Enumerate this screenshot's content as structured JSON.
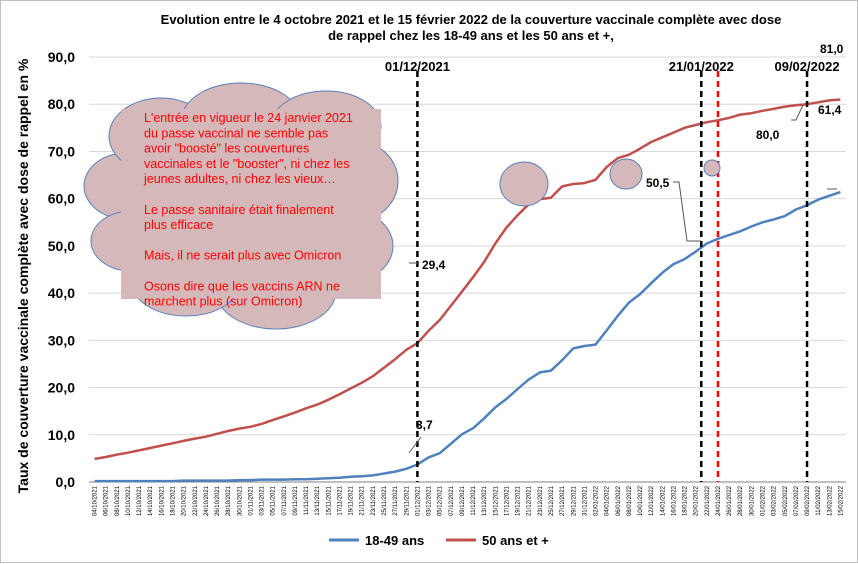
{
  "chart_data": {
    "type": "line",
    "title": [
      "Evolution entre le 4 octobre 2021 et le 15 février 2022 de la couverture vaccinale complète avec dose",
      "de rappel chez les 18-49 ans et les 50 ans et +,"
    ],
    "ylabel": "Taux de couverture vaccinale complète avec dose de rappel en %",
    "xlabel": "",
    "ylim": [
      0,
      90
    ],
    "yticks": [
      "0,0",
      "10,0",
      "20,0",
      "30,0",
      "40,0",
      "50,0",
      "60,0",
      "70,0",
      "80,0",
      "90,0"
    ],
    "grid": true,
    "legend_position": "bottom",
    "colors": {
      "s1": "#4f81bd",
      "s2": "#c0504d",
      "cloud": "#d5b8ba",
      "cloud_edge": "#5b7fb8",
      "red_marker": "#ff0000"
    },
    "x": [
      "04/10/2021",
      "06/10/2021",
      "08/10/2021",
      "10/10/2021",
      "12/10/2021",
      "14/10/2021",
      "16/10/2021",
      "18/10/2021",
      "20/10/2021",
      "22/10/2021",
      "24/10/2021",
      "26/10/2021",
      "28/10/2021",
      "30/10/2021",
      "01/11/2021",
      "03/11/2021",
      "05/11/2021",
      "07/11/2021",
      "09/11/2021",
      "11/11/2021",
      "13/11/2021",
      "15/11/2021",
      "17/11/2021",
      "19/11/2021",
      "21/11/2021",
      "23/11/2021",
      "25/11/2021",
      "27/11/2021",
      "29/11/2021",
      "01/12/2021",
      "03/12/2021",
      "05/12/2021",
      "07/12/2021",
      "09/12/2021",
      "11/12/2021",
      "13/12/2021",
      "15/12/2021",
      "17/12/2021",
      "19/12/2021",
      "21/12/2021",
      "23/12/2021",
      "25/12/2021",
      "27/12/2021",
      "29/12/2021",
      "31/12/2021",
      "02/01/2022",
      "04/01/2022",
      "06/01/2022",
      "08/01/2022",
      "10/01/2022",
      "12/01/2022",
      "14/01/2022",
      "16/01/2022",
      "18/01/2022",
      "20/01/2022",
      "22/01/2022",
      "24/01/2022",
      "26/01/2022",
      "28/01/2022",
      "30/01/2022",
      "01/02/2022",
      "03/02/2022",
      "05/02/2022",
      "07/02/2022",
      "09/02/2022",
      "11/02/2022",
      "13/02/2022",
      "15/02/2022"
    ],
    "series": [
      {
        "name": "18-49 ans",
        "values": [
          0.2,
          0.2,
          0.2,
          0.2,
          0.2,
          0.2,
          0.2,
          0.2,
          0.3,
          0.3,
          0.3,
          0.3,
          0.3,
          0.4,
          0.4,
          0.5,
          0.5,
          0.5,
          0.6,
          0.6,
          0.7,
          0.8,
          0.9,
          1.1,
          1.2,
          1.4,
          1.8,
          2.2,
          2.8,
          3.7,
          5.2,
          6.1,
          8.1,
          10.1,
          11.4,
          13.5,
          15.8,
          17.6,
          19.7,
          21.7,
          23.2,
          23.6,
          25.8,
          28.3,
          28.8,
          29.1,
          32.1,
          35.2,
          38.0,
          39.8,
          42.1,
          44.3,
          46.1,
          47.2,
          48.8,
          50.5,
          51.5,
          52.3,
          53.1,
          54.1,
          55.0,
          55.6,
          56.3,
          57.7,
          58.6,
          59.8,
          60.6,
          61.4
        ]
      },
      {
        "name": "50 ans et +",
        "values": [
          4.9,
          5.3,
          5.8,
          6.2,
          6.7,
          7.2,
          7.7,
          8.2,
          8.7,
          9.2,
          9.6,
          10.2,
          10.8,
          11.3,
          11.7,
          12.3,
          13.1,
          13.9,
          14.7,
          15.6,
          16.4,
          17.4,
          18.6,
          19.8,
          21.0,
          22.4,
          24.2,
          26.0,
          28.0,
          29.4,
          32.0,
          34.3,
          37.3,
          40.3,
          43.4,
          46.6,
          50.5,
          53.9,
          56.5,
          58.8,
          59.9,
          60.2,
          62.6,
          63.1,
          63.3,
          64.0,
          66.7,
          68.6,
          69.3,
          70.6,
          72.0,
          73.0,
          74.0,
          75.0,
          75.6,
          76.2,
          76.6,
          77.1,
          77.8,
          78.1,
          78.6,
          79.0,
          79.5,
          79.8,
          80.0,
          80.4,
          80.8,
          81.0
        ]
      }
    ],
    "vertical_markers": [
      {
        "label": "01/12/2021",
        "x_index": 29,
        "color": "#000000"
      },
      {
        "label": "21/01/2022",
        "x_index": 54.5,
        "color": "#000000"
      },
      {
        "label": "",
        "x_index": 56,
        "color": "#ff0000"
      },
      {
        "label": "09/02/2022",
        "x_index": 64,
        "color": "#000000"
      }
    ],
    "annotations": [
      "29,4",
      "3,7",
      "50,5",
      "80,0",
      "61,4",
      "81,0"
    ],
    "cloud_text": [
      "L'entrée en vigueur le 24 janvier 2021",
      "du passe vaccinal ne semble pas",
      "avoir \"boosté\" les couvertures",
      "vaccinales et le \"booster\", ni chez les",
      "jeunes adultes, ni chez les vieux…",
      "",
      "Le passe sanitaire était finalement",
      "plus efficace",
      "",
      "Mais, il ne serait plus avec Omicron",
      "",
      "Osons dire que les vaccins ARN ne",
      "marchent plus (sur Omicron)"
    ]
  }
}
